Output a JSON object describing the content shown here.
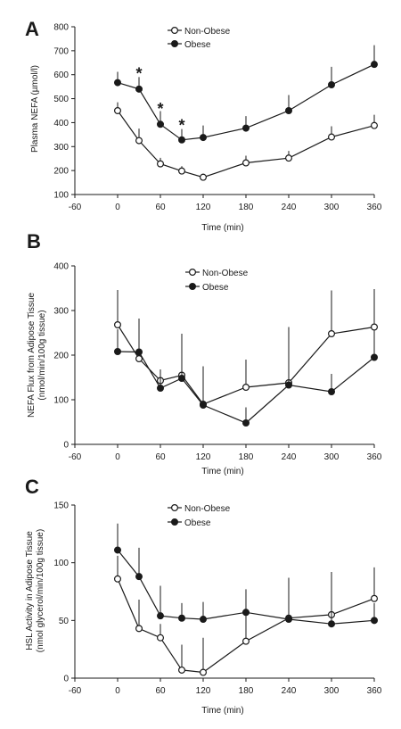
{
  "colors": {
    "axis": "#1a1a1a",
    "line": "#1a1a1a",
    "open_marker_fill": "#ffffff",
    "filled_marker_fill": "#1a1a1a"
  },
  "chart_data": [
    {
      "type": "line",
      "panel": "A",
      "xlabel": "Time (min)",
      "ylabel": "Plasma NEFA (µmol/l)",
      "xlim": [
        -60,
        360
      ],
      "ylim": [
        100,
        800
      ],
      "xticks": [
        -60,
        0,
        60,
        120,
        180,
        240,
        300,
        360
      ],
      "yticks": [
        100,
        200,
        300,
        400,
        500,
        600,
        700,
        800
      ],
      "legend_position": "top-center",
      "x": [
        0,
        30,
        60,
        90,
        120,
        180,
        240,
        300,
        360
      ],
      "series": [
        {
          "name": "Non-Obese",
          "marker": "open-circle",
          "values": [
            450,
            325,
            228,
            198,
            172,
            232,
            252,
            340,
            388
          ],
          "error_up": [
            35,
            50,
            25,
            20,
            15,
            30,
            30,
            45,
            45
          ]
        },
        {
          "name": "Obese",
          "marker": "filled-circle",
          "values": [
            567,
            540,
            393,
            328,
            338,
            377,
            450,
            558,
            643
          ],
          "error_up": [
            45,
            50,
            55,
            45,
            50,
            50,
            65,
            75,
            80
          ]
        }
      ],
      "annotations": [
        {
          "x": 30,
          "y": 605,
          "text": "*"
        },
        {
          "x": 60,
          "y": 458,
          "text": "*"
        },
        {
          "x": 90,
          "y": 388,
          "text": "*"
        }
      ]
    },
    {
      "type": "line",
      "panel": "B",
      "xlabel": "Time (min)",
      "ylabel": "NEFA Flux from Adipose Tissue",
      "ylabel2": "(nmol/min/100g tissue)",
      "xlim": [
        -60,
        360
      ],
      "ylim": [
        0,
        400
      ],
      "xticks": [
        -60,
        0,
        60,
        120,
        180,
        240,
        300,
        360
      ],
      "yticks": [
        0,
        100,
        200,
        300,
        400
      ],
      "legend_position": "top-center",
      "x": [
        0,
        30,
        60,
        90,
        120,
        180,
        240,
        300,
        360
      ],
      "series": [
        {
          "name": "Non-Obese",
          "marker": "open-circle",
          "values": [
            268,
            192,
            143,
            155,
            90,
            128,
            138,
            248,
            263
          ],
          "error_up": [
            78,
            70,
            25,
            93,
            85,
            62,
            125,
            97,
            85
          ]
        },
        {
          "name": "Obese",
          "marker": "filled-circle",
          "values": [
            208,
            207,
            126,
            148,
            88,
            48,
            133,
            118,
            195
          ],
          "error_up": [
            50,
            75,
            28,
            30,
            22,
            35,
            90,
            40,
            60
          ]
        }
      ],
      "annotations": []
    },
    {
      "type": "line",
      "panel": "C",
      "xlabel": "Time (min)",
      "ylabel": "HSL Activity in Adipose Tissue",
      "ylabel2": "(nmol glycerol/min/100g tissue)",
      "xlim": [
        -60,
        360
      ],
      "ylim": [
        0,
        150
      ],
      "xticks": [
        -60,
        0,
        60,
        120,
        180,
        240,
        300,
        360
      ],
      "yticks": [
        0,
        50,
        100,
        150
      ],
      "legend_position": "top-center",
      "x": [
        0,
        30,
        60,
        90,
        120,
        180,
        240,
        300,
        360
      ],
      "series": [
        {
          "name": "Non-Obese",
          "marker": "open-circle",
          "values": [
            86,
            43,
            35,
            7,
            5,
            32,
            52,
            55,
            69
          ],
          "error_up": [
            20,
            25,
            12,
            22,
            30,
            27,
            35,
            37,
            27
          ]
        },
        {
          "name": "Obese",
          "marker": "filled-circle",
          "values": [
            111,
            88,
            54,
            52,
            51,
            57,
            51,
            47,
            50
          ],
          "error_up": [
            23,
            25,
            26,
            13,
            15,
            20,
            35,
            43,
            15
          ]
        }
      ],
      "annotations": []
    }
  ]
}
